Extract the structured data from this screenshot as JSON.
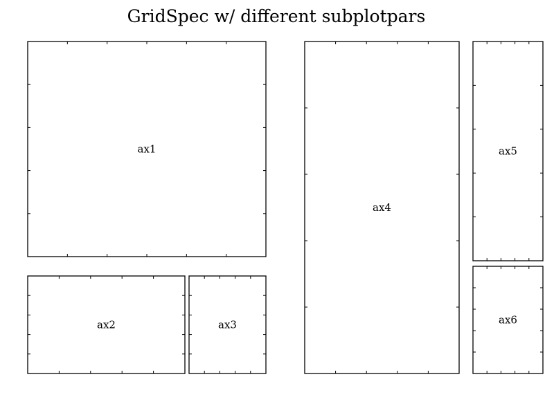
{
  "figure": {
    "title": "GridSpec w/ different subplotpars"
  },
  "chart_data": {
    "type": "diagram",
    "title": "GridSpec w/ different subplotpars",
    "axes": [
      {
        "label": "ax1",
        "x_ticks": 5,
        "y_ticks": 4
      },
      {
        "label": "ax2",
        "x_ticks": 4,
        "y_ticks": 4
      },
      {
        "label": "ax3",
        "x_ticks": 4,
        "y_ticks": 4
      },
      {
        "label": "ax4",
        "x_ticks": 4,
        "y_ticks": 4
      },
      {
        "label": "ax5",
        "x_ticks": 4,
        "y_ticks": 4
      },
      {
        "label": "ax6",
        "x_ticks": 4,
        "y_ticks": 4
      }
    ]
  }
}
